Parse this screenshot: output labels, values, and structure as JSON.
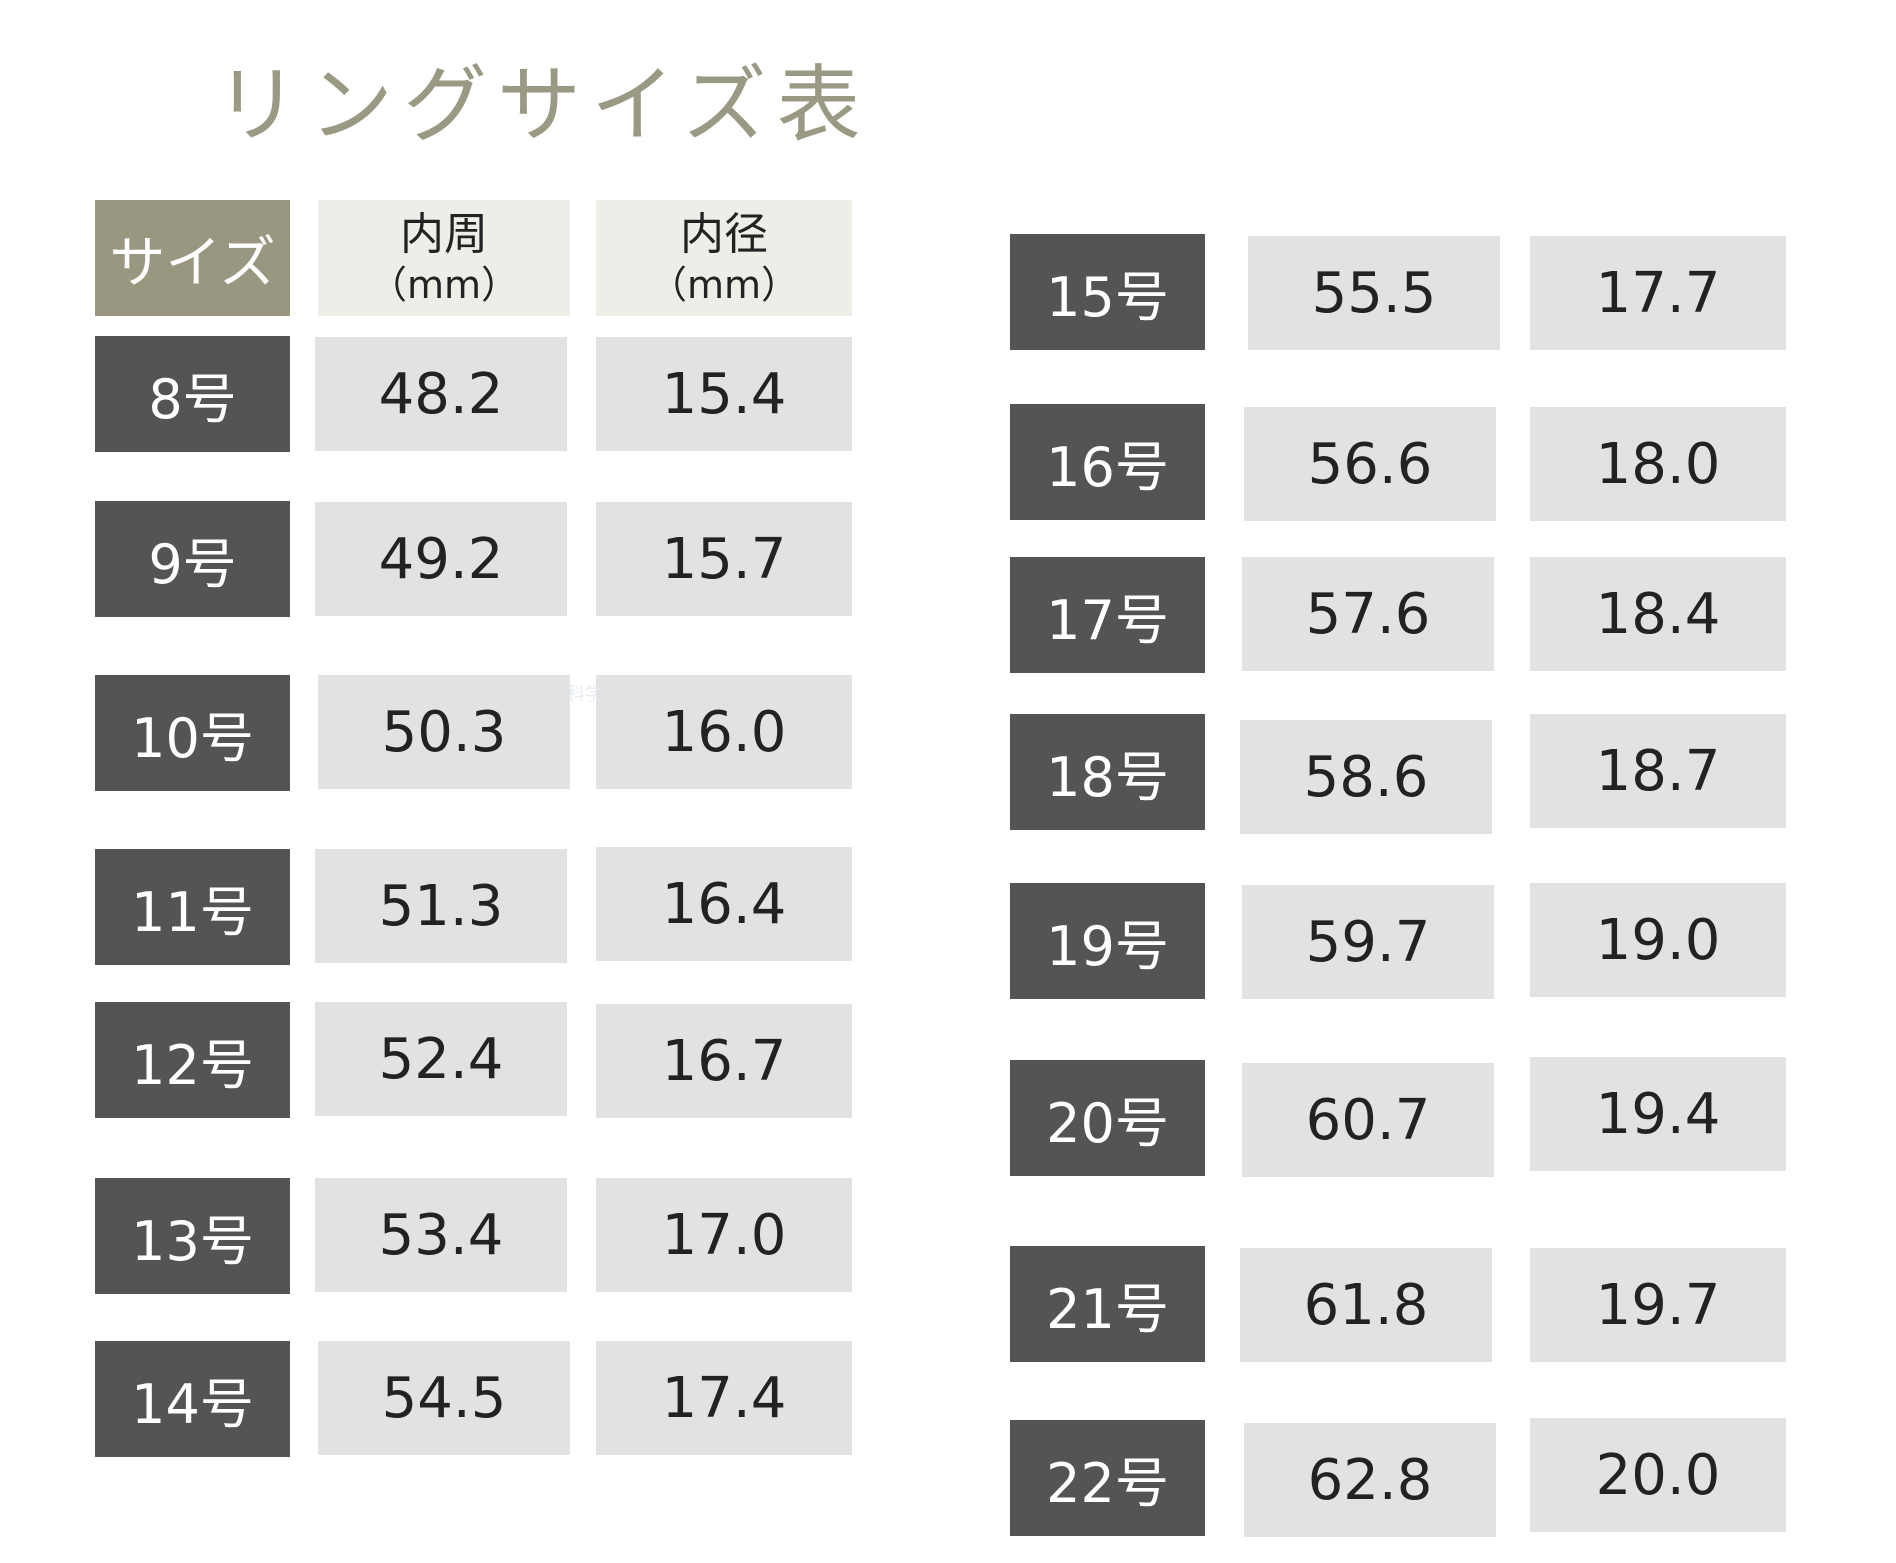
{
  "title": "リングサイズ表",
  "header": {
    "size_label": "サイズ",
    "circumference_label": "内周",
    "circumference_unit": "（mm）",
    "diameter_label": "内径",
    "diameter_unit": "（mm）"
  },
  "watermark": "科学",
  "rows": [
    {
      "size": "8号",
      "circumference": "48.2",
      "diameter": "15.4"
    },
    {
      "size": "9号",
      "circumference": "49.2",
      "diameter": "15.7"
    },
    {
      "size": "10号",
      "circumference": "50.3",
      "diameter": "16.0"
    },
    {
      "size": "11号",
      "circumference": "51.3",
      "diameter": "16.4"
    },
    {
      "size": "12号",
      "circumference": "52.4",
      "diameter": "16.7"
    },
    {
      "size": "13号",
      "circumference": "53.4",
      "diameter": "17.0"
    },
    {
      "size": "14号",
      "circumference": "54.5",
      "diameter": "17.4"
    },
    {
      "size": "15号",
      "circumference": "55.5",
      "diameter": "17.7"
    },
    {
      "size": "16号",
      "circumference": "56.6",
      "diameter": "18.0"
    },
    {
      "size": "17号",
      "circumference": "57.6",
      "diameter": "18.4"
    },
    {
      "size": "18号",
      "circumference": "58.6",
      "diameter": "18.7"
    },
    {
      "size": "19号",
      "circumference": "59.7",
      "diameter": "19.0"
    },
    {
      "size": "20号",
      "circumference": "60.7",
      "diameter": "19.4"
    },
    {
      "size": "21号",
      "circumference": "61.8",
      "diameter": "19.7"
    },
    {
      "size": "22号",
      "circumference": "62.8",
      "diameter": "20.0"
    }
  ]
}
